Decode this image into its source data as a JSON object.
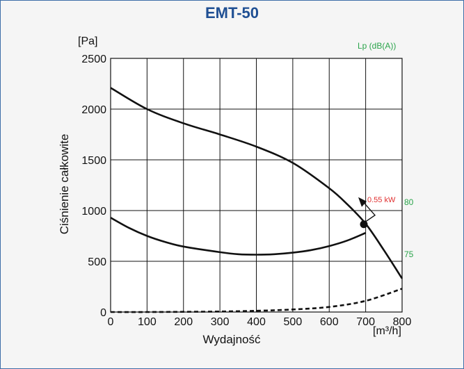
{
  "chart_data": {
    "type": "line",
    "title": "EMT-50",
    "xlabel": "Wydajność",
    "x_unit": "[m³/h]",
    "ylabel": "Ciśnienie całkowite",
    "y_unit": "[Pa]",
    "secondary_label": "Lp (dB(A))",
    "xlim": [
      0,
      800
    ],
    "ylim": [
      0,
      2500
    ],
    "x_ticks": [
      "0",
      "100",
      "200",
      "300",
      "400",
      "500",
      "600",
      "700",
      "800"
    ],
    "y_ticks": [
      "0",
      "500",
      "1000",
      "1500",
      "2000",
      "2500"
    ],
    "grid": true,
    "series": [
      {
        "style": "solid",
        "x": [
          0,
          100,
          200,
          300,
          400,
          500,
          600,
          650,
          700,
          750,
          800
        ],
        "y": [
          2210,
          2000,
          1860,
          1750,
          1630,
          1470,
          1220,
          1060,
          870,
          610,
          330
        ]
      },
      {
        "style": "solid",
        "x": [
          0,
          50,
          100,
          150,
          200,
          300,
          350,
          400,
          450,
          500,
          550,
          600,
          650,
          700
        ],
        "y": [
          930,
          830,
          750,
          690,
          645,
          590,
          570,
          565,
          570,
          585,
          610,
          650,
          705,
          780
        ]
      },
      {
        "style": "dashed",
        "x": [
          0,
          100,
          200,
          300,
          400,
          500,
          600,
          700,
          800
        ],
        "y": [
          0,
          0,
          2,
          5,
          12,
          25,
          50,
          110,
          230
        ]
      }
    ],
    "operating_point": {
      "x": 695,
      "y": 865
    },
    "annotations": [
      {
        "text": "0.55 kW"
      },
      {
        "text": "80"
      },
      {
        "text": "75"
      }
    ]
  }
}
